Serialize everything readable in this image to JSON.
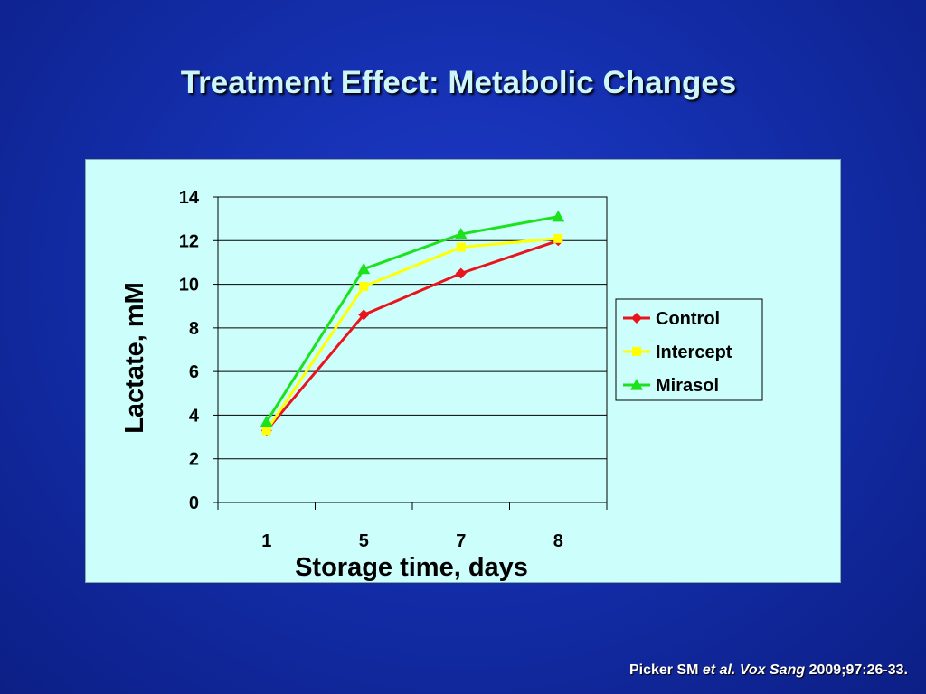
{
  "slide": {
    "title": "Treatment Effect: Metabolic Changes",
    "citation": {
      "authors": "Picker SM",
      "etal": "et al.",
      "journal": "Vox Sang",
      "ref": "2009;97:26-33."
    }
  },
  "colors": {
    "panel_bg": "#ccfffb",
    "title": "#cdf6fb"
  },
  "chart_data": {
    "type": "line",
    "title": "",
    "xlabel": "Storage time, days",
    "ylabel": "Lactate, mM",
    "categories": [
      "1",
      "5",
      "7",
      "8"
    ],
    "ylim": [
      0,
      14
    ],
    "yticks": [
      0,
      2,
      4,
      6,
      8,
      10,
      12,
      14
    ],
    "grid": true,
    "legend_position": "right",
    "series": [
      {
        "name": "Control",
        "color": "#e8141e",
        "marker": "diamond",
        "values": [
          3.3,
          8.6,
          10.5,
          12.0
        ]
      },
      {
        "name": "Intercept",
        "color": "#ffff00",
        "marker": "square",
        "values": [
          3.3,
          9.9,
          11.7,
          12.1
        ]
      },
      {
        "name": "Mirasol",
        "color": "#1ee11e",
        "marker": "triangle",
        "values": [
          3.7,
          10.7,
          12.3,
          13.1
        ]
      }
    ]
  }
}
